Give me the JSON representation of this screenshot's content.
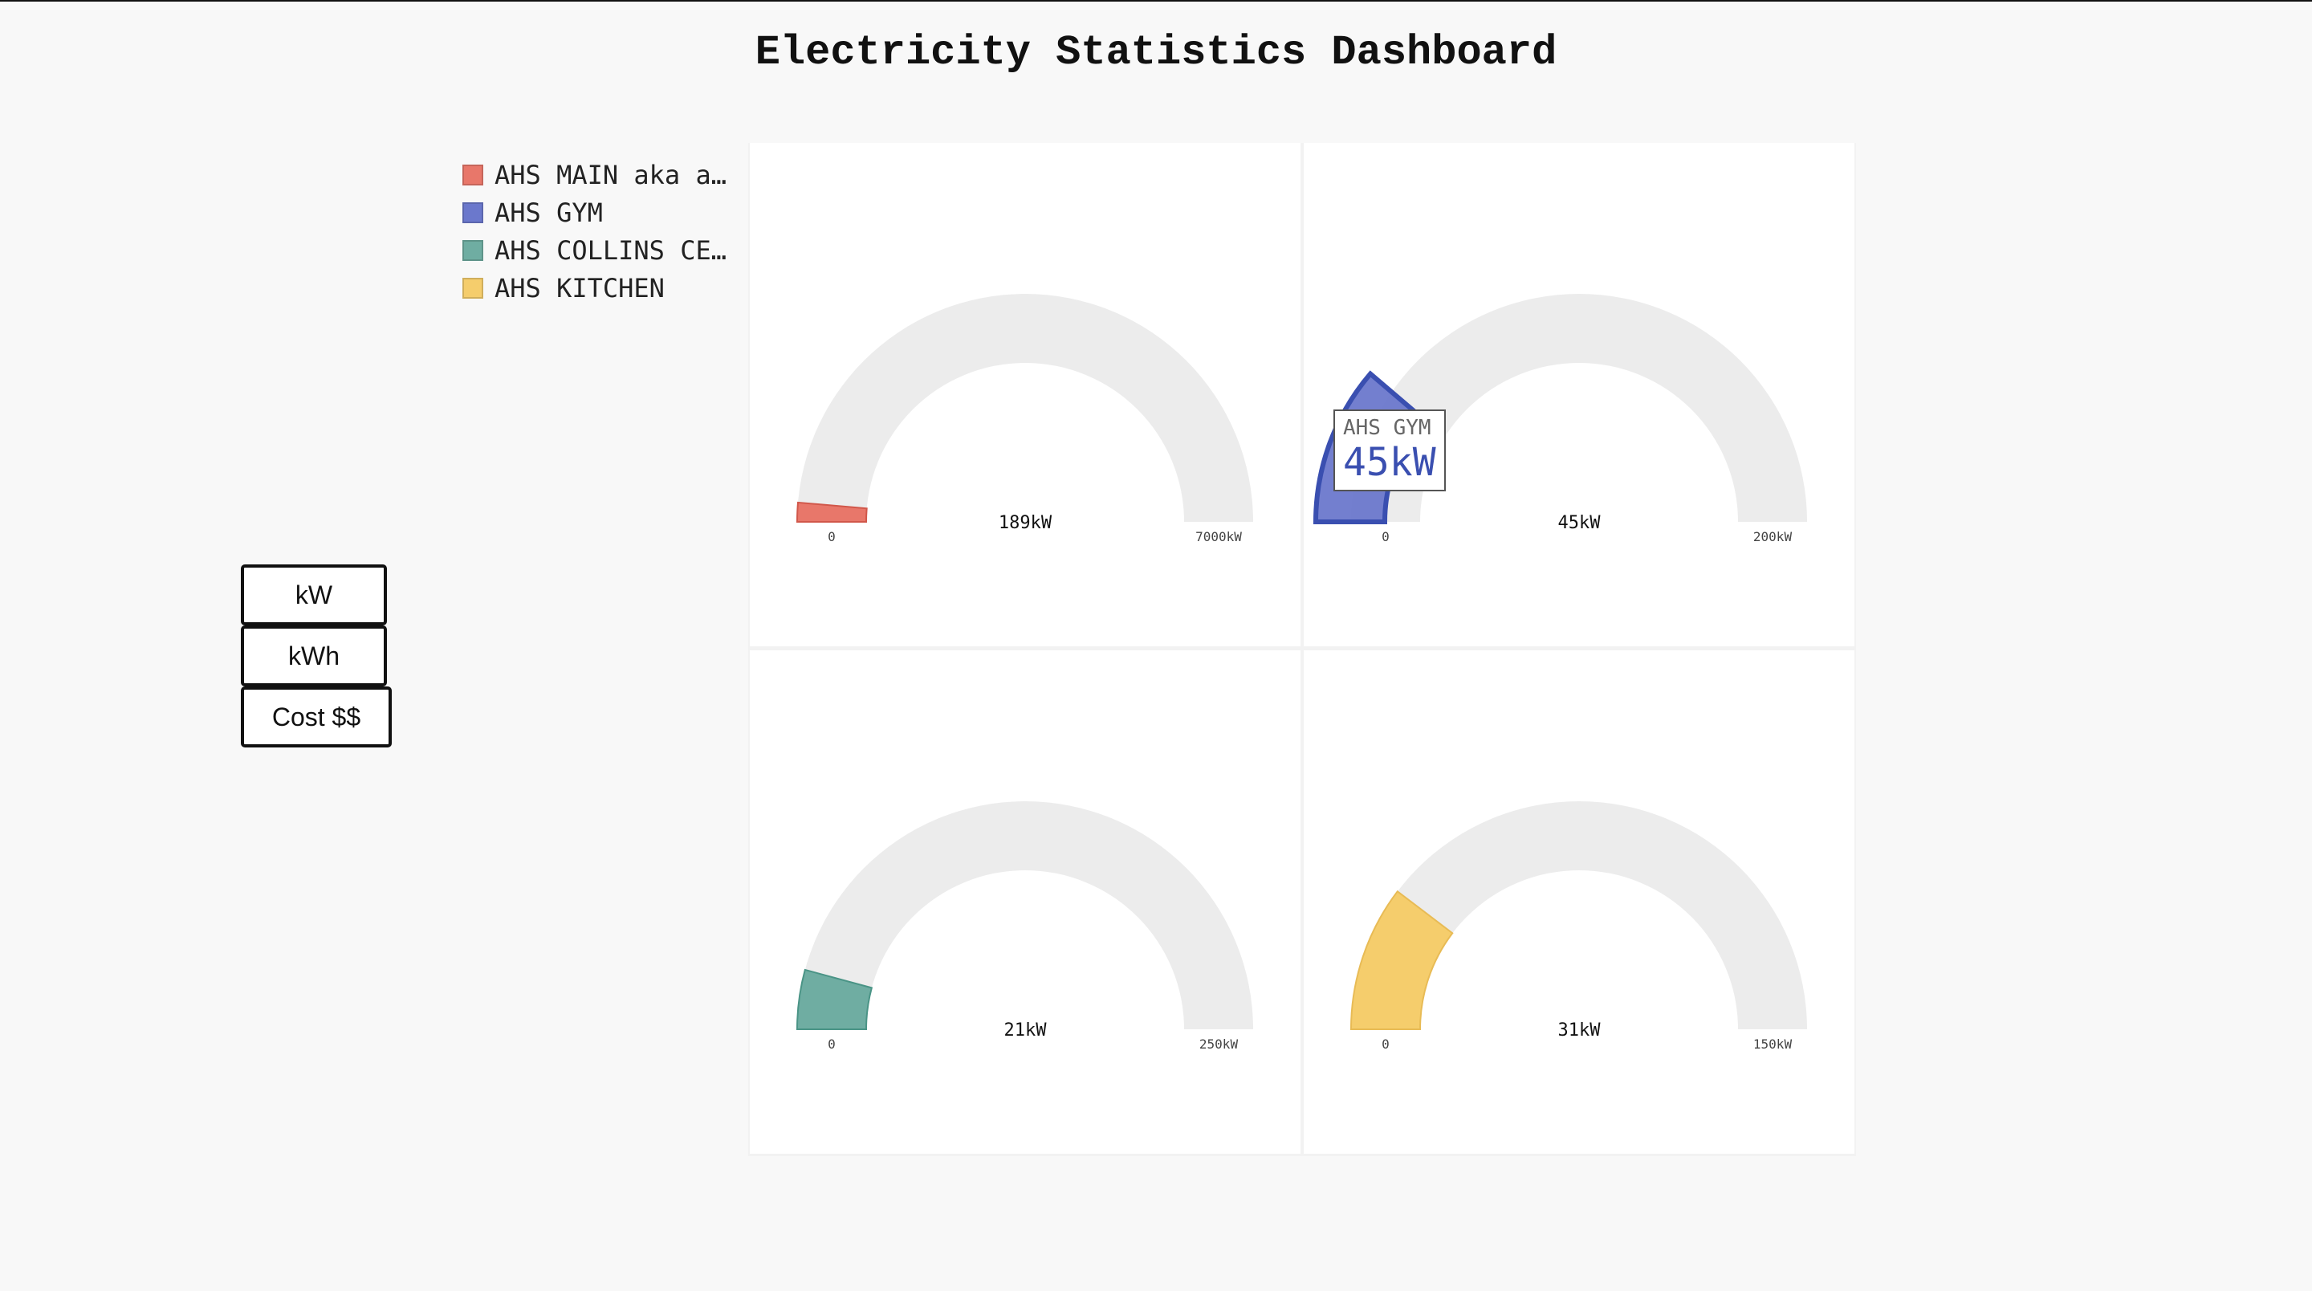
{
  "page": {
    "title": "Electricity Statistics Dashboard"
  },
  "unit_buttons": [
    {
      "label": "kW"
    },
    {
      "label": "kWh"
    },
    {
      "label": "Cost $$"
    }
  ],
  "colors": {
    "track": "#ececec",
    "panel_background": "#ffffff"
  },
  "chart_data": {
    "type": "gauge",
    "legend_position": "top-left",
    "series": [
      {
        "name": "AHS MAIN aka a…",
        "value": 189,
        "min": 0,
        "max": 7000,
        "unit": "kW",
        "value_label": "189kW",
        "min_label": "0",
        "max_label": "7000kW",
        "color": "#e8776a",
        "stroke": "#d1574a"
      },
      {
        "name": "AHS GYM",
        "value": 45,
        "min": 0,
        "max": 200,
        "unit": "kW",
        "value_label": "45kW",
        "min_label": "0",
        "max_label": "200kW",
        "color": "#6b78cc",
        "stroke": "#3a4fb0",
        "highlighted": true
      },
      {
        "name": "AHS COLLINS CE…",
        "value": 21,
        "min": 0,
        "max": 250,
        "unit": "kW",
        "value_label": "21kW",
        "min_label": "0",
        "max_label": "250kW",
        "color": "#6fada2",
        "stroke": "#4a9486"
      },
      {
        "name": "AHS KITCHEN",
        "value": 31,
        "min": 0,
        "max": 150,
        "unit": "kW",
        "value_label": "31kW",
        "min_label": "0",
        "max_label": "150kW",
        "color": "#f5cd6c",
        "stroke": "#e8bb55"
      }
    ],
    "tooltip": {
      "name": "AHS GYM",
      "value_label": "45kW"
    }
  }
}
